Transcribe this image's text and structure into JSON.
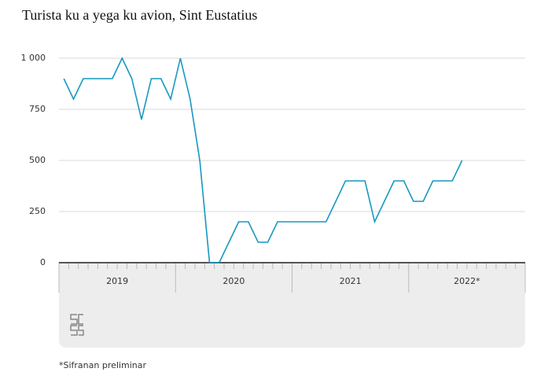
{
  "chart_data": {
    "type": "line",
    "title": "Turista ku a yega ku avion, Sint Eustatius",
    "note": "*Sifranan preliminar",
    "year_labels": [
      "2019",
      "2020",
      "2021",
      "2022*"
    ],
    "categories": [
      null,
      null,
      null,
      null,
      null,
      null,
      null,
      null,
      null,
      null,
      null,
      null,
      null,
      null,
      null,
      null,
      null,
      null,
      null,
      null,
      null,
      null,
      null,
      null,
      null,
      null,
      null,
      null,
      null,
      null,
      null,
      null,
      null,
      null,
      null,
      null,
      null,
      null,
      null,
      null,
      null,
      null
    ],
    "values": [
      900,
      800,
      900,
      900,
      900,
      900,
      1000,
      900,
      700,
      900,
      900,
      800,
      1000,
      800,
      500,
      0,
      0,
      100,
      200,
      200,
      100,
      100,
      200,
      200,
      200,
      200,
      200,
      200,
      300,
      400,
      400,
      400,
      200,
      300,
      400,
      400,
      300,
      300,
      400,
      400,
      400,
      500
    ],
    "color": "#1798bf",
    "ylim": [
      0,
      1000
    ],
    "yticks": [
      0,
      250,
      500,
      750,
      {
        "value": 1000,
        "label": "1 000"
      }
    ],
    "grid": true
  }
}
